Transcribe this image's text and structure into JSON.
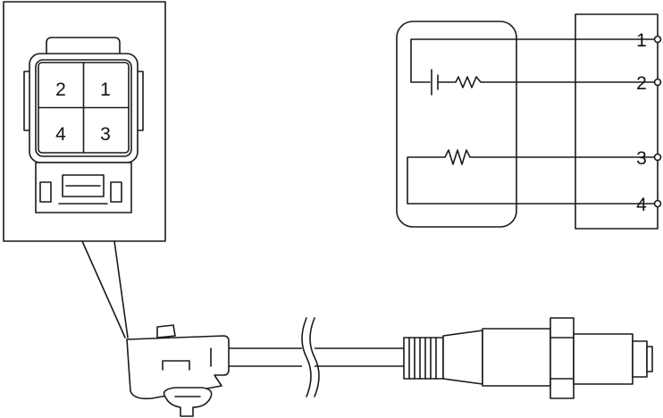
{
  "connector_face": {
    "cavities": [
      {
        "label": "2"
      },
      {
        "label": "1"
      },
      {
        "label": "4"
      },
      {
        "label": "3"
      }
    ]
  },
  "schematic": {
    "terminals": [
      "1",
      "2",
      "3",
      "4"
    ]
  },
  "colors": {
    "line": "#1a1a1a",
    "background": "#ffffff"
  }
}
